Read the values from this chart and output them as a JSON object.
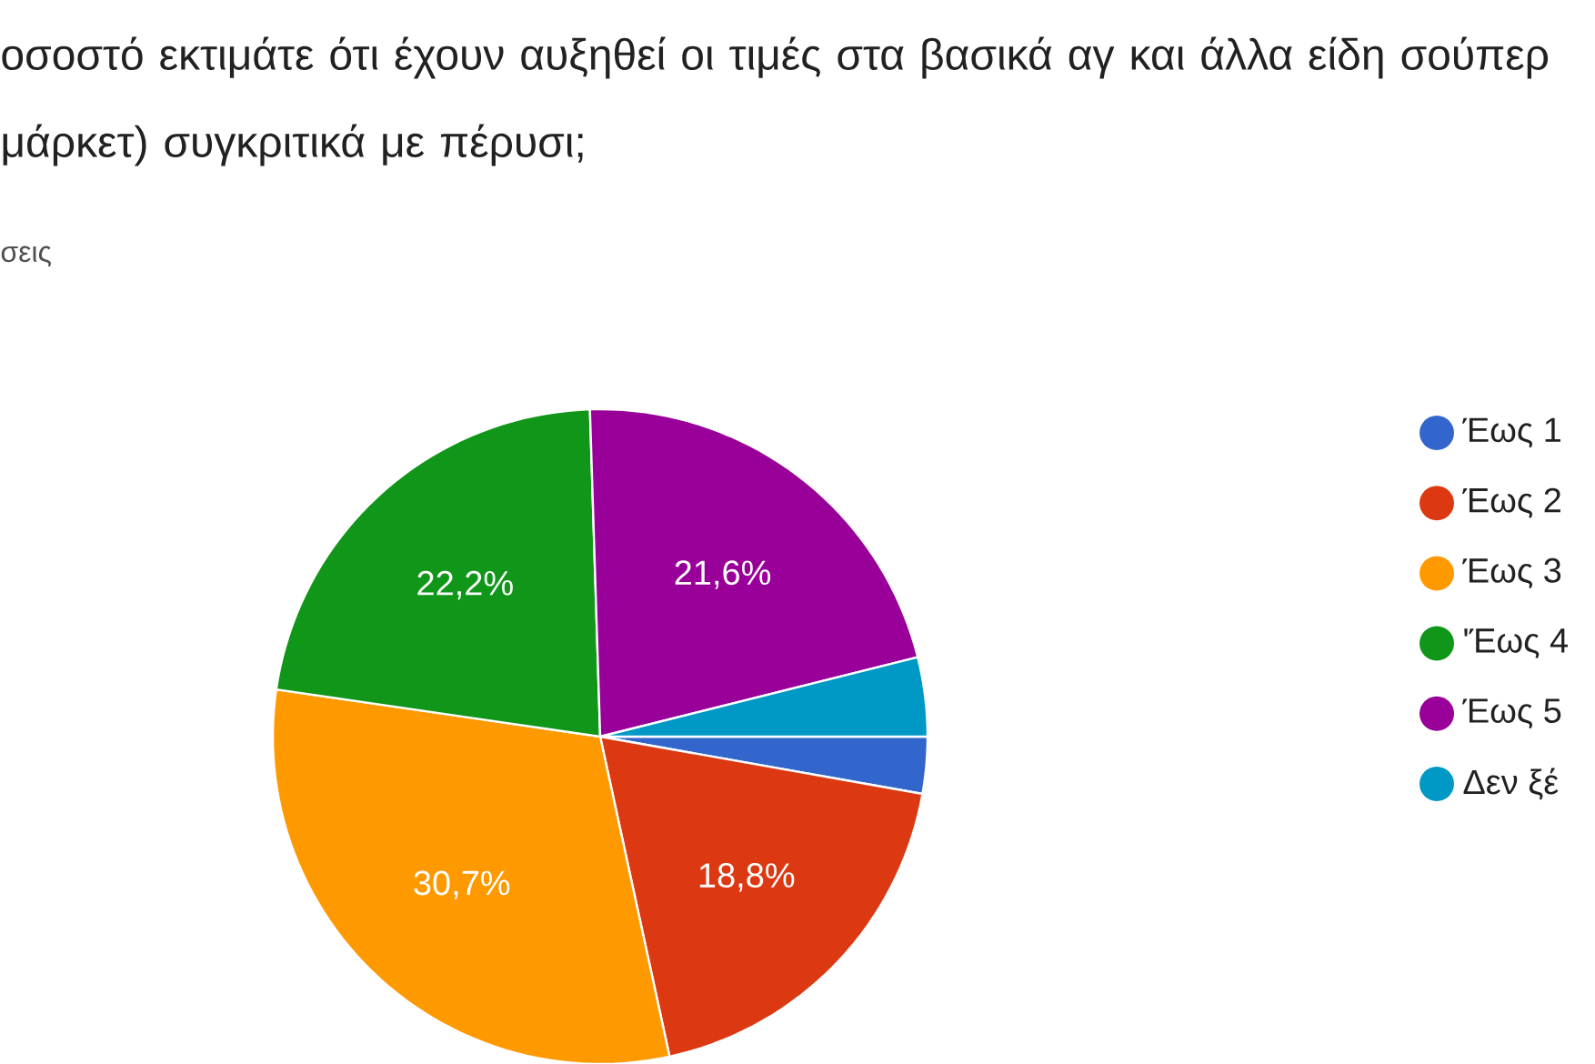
{
  "chart_data": {
    "type": "pie",
    "title": "οσοστό εκτιμάτε ότι έχουν αυξηθεί οι τιμές στα βασικά αγ και άλλα είδη σούπερ μάρκετ) συγκριτικά με πέρυσι;",
    "subtitle": "σεις",
    "categories": [
      "Έως 1",
      "Έως 2",
      "Έως 3",
      "'Έως 4",
      "Έως 5",
      "Δεν ξέ"
    ],
    "values": [
      2.8,
      18.8,
      30.7,
      22.2,
      21.6,
      3.9
    ],
    "colors": [
      "#3366cc",
      "#dc3912",
      "#ff9900",
      "#109618",
      "#990099",
      "#0099c6"
    ],
    "value_labels": [
      null,
      "18,8%",
      "30,7%",
      "22,2%",
      "21,6%",
      null
    ],
    "legend": "right"
  }
}
